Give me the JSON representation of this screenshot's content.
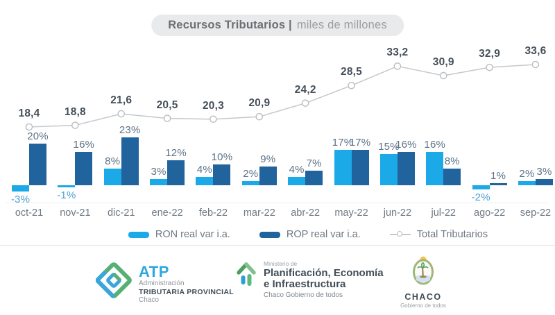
{
  "title": {
    "bold": "Recursos Tributarios |",
    "light": "miles de millones"
  },
  "chart_data": {
    "type": "combo-bar-line",
    "title": "Recursos Tributarios | miles de millones",
    "categories": [
      "oct-21",
      "nov-21",
      "dic-21",
      "ene-22",
      "feb-22",
      "mar-22",
      "abr-22",
      "may-22",
      "jun-22",
      "jul-22",
      "ago-22",
      "sep-22"
    ],
    "series": [
      {
        "name": "RON real var i.a.",
        "type": "bar",
        "color": "#1BA9E8",
        "unit": "%",
        "values": [
          -3,
          -1,
          8,
          3,
          4,
          2,
          4,
          17,
          15,
          16,
          -2,
          2
        ]
      },
      {
        "name": "ROP real var i.a.",
        "type": "bar",
        "color": "#20639D",
        "unit": "%",
        "values": [
          20,
          16,
          23,
          12,
          10,
          9,
          7,
          17,
          16,
          8,
          1,
          3
        ]
      },
      {
        "name": "Total Tributarios",
        "type": "line",
        "color": "#C8CBCE",
        "unit": "miles de millones",
        "values": [
          18.4,
          18.8,
          21.6,
          20.5,
          20.3,
          20.9,
          24.2,
          28.5,
          33.2,
          30.9,
          32.9,
          33.6
        ],
        "point_labels": [
          "18,4",
          "18,8",
          "21,6",
          "20,5",
          "20,3",
          "20,9",
          "24,2",
          "28,5",
          "33,2",
          "30,9",
          "32,9",
          "33,6"
        ]
      }
    ],
    "bar_label_suffix": "%",
    "legend_position": "bottom",
    "grid": false
  },
  "footer": {
    "atp": {
      "acronym": "ATP",
      "line1": "Administración",
      "line2": "TRIBUTARIA PROVINCIAL",
      "line3": "Chaco"
    },
    "ministry": {
      "over": "Ministerio de",
      "line1": "Planificación, Economía",
      "line2": "e Infraestructura",
      "sub": "Chaco Gobierno de todos"
    },
    "chaco": {
      "name": "CHACO",
      "sub": "Gobierno de todos"
    }
  }
}
